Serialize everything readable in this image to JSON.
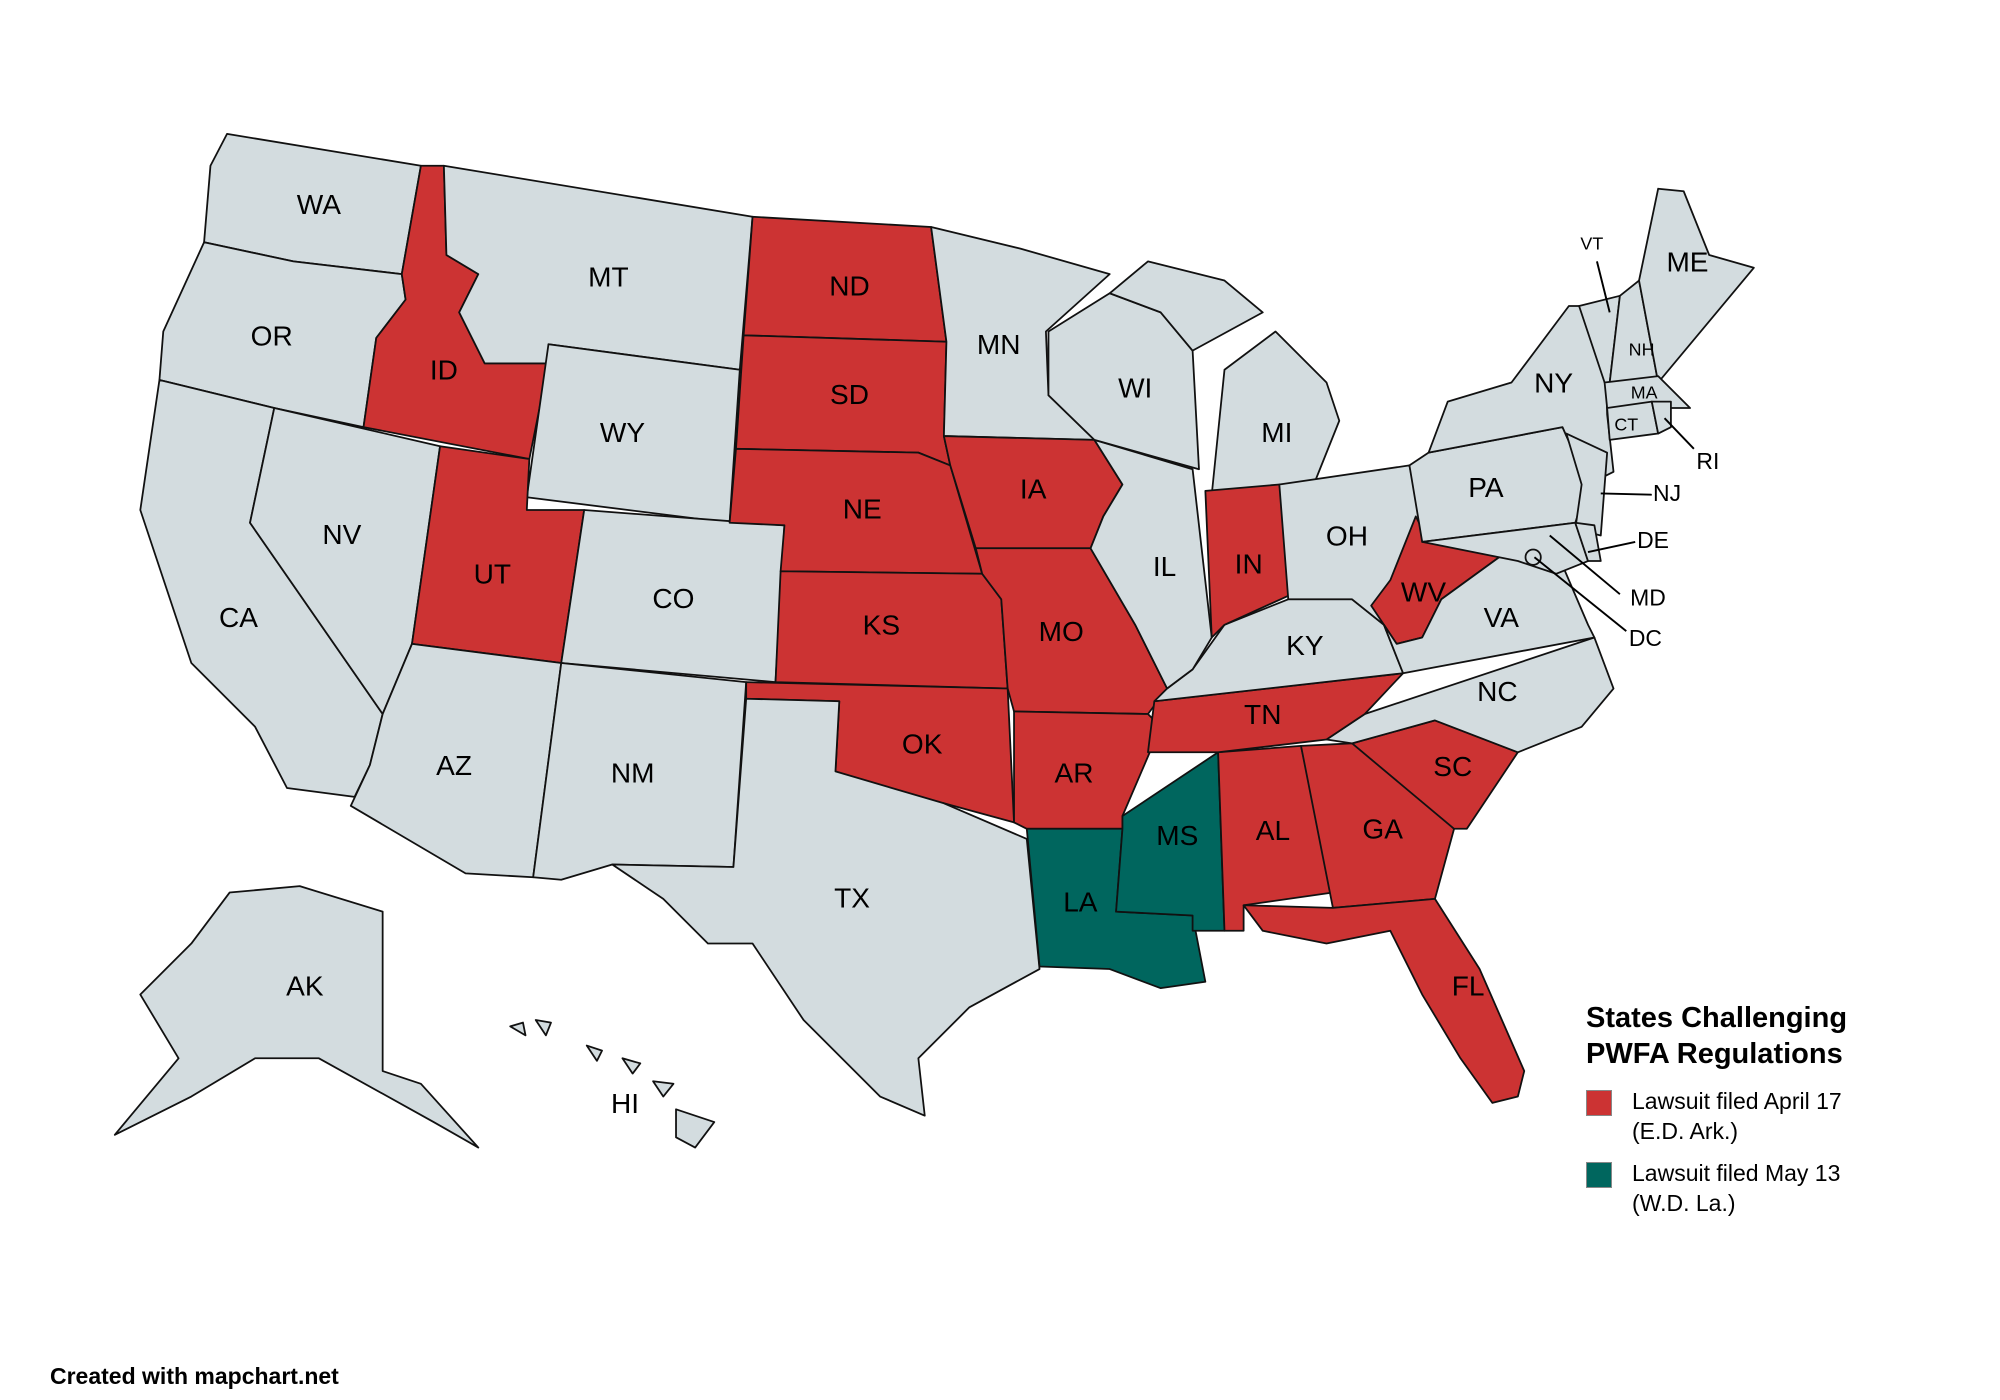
{
  "legend": {
    "title_line1": "States Challenging",
    "title_line2": "PWFA Regulations",
    "items": [
      {
        "line1": "Lawsuit filed April 17",
        "line2": "(E.D. Ark.)",
        "color": "#cc3333"
      },
      {
        "line1": "Lawsuit filed May 13",
        "line2": "(W.D. La.)",
        "color": "#00665e"
      }
    ]
  },
  "default_color": "#d3dcdf",
  "credit": "Created with mapchart.net",
  "states": {
    "april17": [
      "ID",
      "UT",
      "ND",
      "SD",
      "NE",
      "KS",
      "OK",
      "IA",
      "MO",
      "AR",
      "IN",
      "TN",
      "WV",
      "AL",
      "GA",
      "SC",
      "FL"
    ],
    "may13": [
      "LA",
      "MS"
    ]
  },
  "labels": [
    "WA",
    "OR",
    "CA",
    "NV",
    "ID",
    "MT",
    "WY",
    "UT",
    "CO",
    "AZ",
    "NM",
    "ND",
    "SD",
    "NE",
    "KS",
    "OK",
    "TX",
    "MN",
    "IA",
    "MO",
    "AR",
    "LA",
    "MS",
    "AL",
    "GA",
    "FL",
    "SC",
    "NC",
    "TN",
    "KY",
    "IL",
    "WI",
    "MI",
    "IN",
    "OH",
    "WV",
    "VA",
    "PA",
    "NY",
    "NJ",
    "MD",
    "DE",
    "DC",
    "VT",
    "NH",
    "ME",
    "MA",
    "CT",
    "RI",
    "AK",
    "HI"
  ]
}
